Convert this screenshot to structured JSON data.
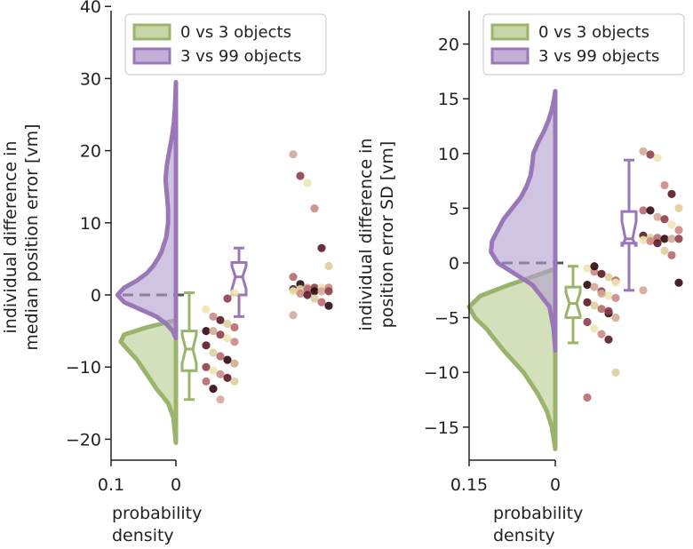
{
  "colors": {
    "green": "#9ab46c",
    "green_fill": "#b8cb90",
    "purple": "#9a78b8",
    "purple_fill": "#b39cd0",
    "zero_line": "#555555",
    "scatter_palette": [
      "#ede6b0",
      "#dfcf9e",
      "#d3aa96",
      "#c98a86",
      "#b66a6e",
      "#8e3e4a",
      "#5a1a26",
      "#2b0a10"
    ]
  },
  "chart_data": [
    {
      "type": "raincloud",
      "panel": "left",
      "ylabel_lines": [
        "individual difference in",
        "median position error [vm]"
      ],
      "xlabel_lines": [
        "probability",
        "density"
      ],
      "ylim": [
        -22,
        40
      ],
      "yticks": [
        -20,
        -10,
        0,
        10,
        20,
        30,
        40
      ],
      "ytick_labels": [
        "−20",
        "−10",
        "0",
        "10",
        "20",
        "30",
        "40"
      ],
      "xlim": [
        0.1,
        0
      ],
      "xtick_labels": [
        "0.1",
        "0"
      ],
      "legend": [
        "0 vs 3 objects",
        "3 vs 99 objects"
      ],
      "series": [
        {
          "name": "0 vs 3 objects",
          "color_key": "green",
          "density": {
            "y": [
              -20.5,
              -17,
              -15,
              -13,
              -11,
              -9,
              -7.5,
              -6.5,
              -5.5,
              -4.5,
              -3.5
            ],
            "d": [
              0,
              0.004,
              0.012,
              0.03,
              0.045,
              0.06,
              0.075,
              0.085,
              0.08,
              0.045,
              0
            ]
          },
          "box": {
            "whisker_low": -14.5,
            "q1": -10.5,
            "notch_low": -9.5,
            "median": -7.5,
            "notch_high": -5.5,
            "q3": -5,
            "whisker_high": 0.3
          },
          "points": [
            -2,
            -3,
            -3.5,
            -4,
            -4.5,
            -5,
            -5,
            -5.5,
            -6,
            -6.5,
            -7,
            -8,
            -8.5,
            -9,
            -9.5,
            -10,
            -10.5,
            -11,
            -11.5,
            -12,
            -12,
            -13,
            -14.5,
            -0.5,
            0.3
          ]
        },
        {
          "name": "3 vs 99 objects",
          "color_key": "purple",
          "density": {
            "y": [
              -6,
              -5,
              -4,
              -3,
              -2,
              -1,
              0,
              1,
              2,
              3,
              4,
              5,
              6,
              8,
              10,
              12,
              14,
              16,
              18,
              20,
              22,
              24,
              26,
              28,
              29.5
            ],
            "d": [
              0,
              0.005,
              0.015,
              0.03,
              0.055,
              0.08,
              0.09,
              0.08,
              0.06,
              0.045,
              0.035,
              0.028,
              0.022,
              0.015,
              0.012,
              0.012,
              0.014,
              0.016,
              0.014,
              0.01,
              0.006,
              0.003,
              0.0015,
              0.0005,
              0
            ]
          },
          "box": {
            "whisker_low": -3,
            "q1": 0,
            "notch_low": 0.8,
            "median": 2.5,
            "notch_high": 4,
            "q3": 4.5,
            "whisker_high": 6.5
          },
          "points": [
            19.5,
            16.5,
            15.5,
            12,
            6.5,
            4,
            2.5,
            1.5,
            1,
            1,
            1,
            1,
            0.8,
            0.8,
            0.8,
            0.5,
            0.5,
            0.5,
            0.5,
            0.2,
            0,
            -0.5,
            -1,
            -1.5,
            -2.8
          ]
        }
      ]
    },
    {
      "type": "raincloud",
      "panel": "right",
      "ylabel_lines": [
        "individual difference in",
        "position error SD [vm]"
      ],
      "xlabel_lines": [
        "probability",
        "density"
      ],
      "ylim": [
        -18,
        23.5
      ],
      "yticks": [
        -15,
        -10,
        -5,
        0,
        5,
        10,
        15,
        20
      ],
      "ytick_labels": [
        "−15",
        "−10",
        "−5",
        "0",
        "5",
        "10",
        "15",
        "20"
      ],
      "xlim": [
        0.15,
        0
      ],
      "xtick_labels": [
        "0.15",
        "0"
      ],
      "legend": [
        "0 vs 3 objects",
        "3 vs 99 objects"
      ],
      "series": [
        {
          "name": "0 vs 3 objects",
          "color_key": "green",
          "density": {
            "y": [
              -17,
              -15,
              -13.5,
              -12,
              -10,
              -8,
              -6,
              -5,
              -4,
              -3,
              -2,
              -1,
              -0.5
            ],
            "d": [
              0,
              0.006,
              0.015,
              0.03,
              0.055,
              0.09,
              0.12,
              0.14,
              0.15,
              0.13,
              0.08,
              0.025,
              0
            ]
          },
          "box": {
            "whisker_low": -7.3,
            "q1": -5,
            "notch_low": -4.8,
            "median": -3.7,
            "notch_high": -2.7,
            "q3": -2.2,
            "whisker_high": -0.3
          },
          "points": [
            -0.5,
            -0.8,
            -1,
            -1.3,
            -1.6,
            -2,
            -2.2,
            -2.6,
            -3,
            -3.2,
            -3.6,
            -3.9,
            -4.2,
            -4.6,
            -5,
            -5.4,
            -6,
            -6.5,
            -7,
            -10,
            -12.3,
            -0.3,
            -2.8,
            -4.4,
            -1.8
          ]
        },
        {
          "name": "3 vs 99 objects",
          "color_key": "purple",
          "density": {
            "y": [
              -8,
              -6,
              -4,
              -2,
              -1,
              0,
              1,
              2,
              3,
              4,
              5,
              6,
              7,
              8,
              9,
              10,
              11,
              12,
              13,
              14,
              15,
              15.7
            ],
            "d": [
              0,
              0.003,
              0.01,
              0.04,
              0.07,
              0.1,
              0.112,
              0.11,
              0.1,
              0.09,
              0.075,
              0.06,
              0.05,
              0.043,
              0.04,
              0.038,
              0.03,
              0.02,
              0.012,
              0.006,
              0.002,
              0
            ]
          },
          "box": {
            "whisker_low": -2.5,
            "q1": 1.8,
            "notch_low": 1.5,
            "median": 2.2,
            "notch_high": 3.8,
            "q3": 4.7,
            "whisker_high": 9.4
          },
          "points": [
            10.2,
            9.9,
            9.6,
            7.1,
            6.3,
            5,
            4.8,
            4.8,
            4.2,
            4,
            3.5,
            3,
            2.5,
            2.3,
            2.3,
            2.2,
            2.2,
            2.2,
            2.1,
            2,
            1.8,
            1.1,
            0.7,
            -1.8,
            -2.5
          ]
        }
      ]
    }
  ]
}
